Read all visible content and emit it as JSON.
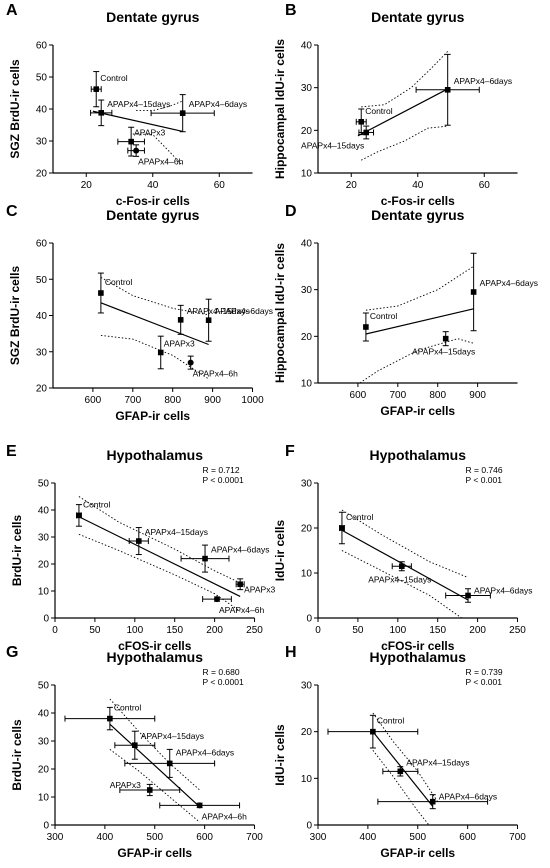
{
  "chart_data": [
    {
      "panel": "A",
      "type": "scatter",
      "title": "Dentate gyrus",
      "xlabel": "c-Fos-ir cells",
      "ylabel": "SGZ BrdU-ir cells",
      "xlim": [
        10,
        70
      ],
      "ylim": [
        20,
        60
      ],
      "xticks": [
        "20",
        "40",
        "60"
      ],
      "yticks": [
        "20",
        "30",
        "40",
        "50",
        "60"
      ],
      "points": [
        {
          "label": "Control",
          "x": 23,
          "y": 46.2,
          "xerr": 1.5,
          "yerr": 5.5
        },
        {
          "label": "APAPx4–15days",
          "x": 24.5,
          "y": 38.8,
          "xerr": 3.2,
          "yerr": 4
        },
        {
          "label": "APAPx4–6days",
          "x": 49,
          "y": 38.7,
          "xerr": 9.5,
          "yerr": 5.8
        },
        {
          "label": "APAPx3",
          "x": 33.5,
          "y": 29.8,
          "xerr": 4,
          "yerr": 4.5
        },
        {
          "label": "APAPx4–6h",
          "x": 35,
          "y": 27,
          "xerr": 2.5,
          "yerr": 1.8
        }
      ],
      "fit": [
        [
          22,
          39.3
        ],
        [
          49,
          33
        ]
      ],
      "band_upper": [
        [
          35,
          39.5
        ],
        [
          40,
          39.5
        ],
        [
          45,
          40.8
        ],
        [
          49,
          42.5
        ]
      ],
      "band_lower": [
        [
          34,
          32.2
        ],
        [
          40,
          32
        ],
        [
          45,
          26.7
        ],
        [
          49,
          22.3
        ]
      ]
    },
    {
      "panel": "B",
      "type": "scatter",
      "title": "Dentate gyrus",
      "xlabel": "c-Fos-ir cells",
      "ylabel": "Hippocampal IdU-ir cells",
      "xlim": [
        10,
        70
      ],
      "ylim": [
        10,
        40
      ],
      "xticks": [
        "20",
        "40",
        "60"
      ],
      "yticks": [
        "10",
        "20",
        "30",
        "40"
      ],
      "points": [
        {
          "label": "Control",
          "x": 23,
          "y": 22,
          "xerr": 1.5,
          "yerr": 3
        },
        {
          "label": "APAPx4–15days",
          "x": 24.5,
          "y": 19.5,
          "xerr": 2.2,
          "yerr": 1.5
        },
        {
          "label": "APAPx4–6days",
          "x": 49,
          "y": 29.5,
          "xerr": 9.5,
          "yerr": 8.3
        }
      ],
      "fit": [
        [
          22,
          18.7
        ],
        [
          49,
          29.7
        ]
      ],
      "band_upper": [
        [
          23,
          25.5
        ],
        [
          30,
          26
        ],
        [
          38,
          30
        ],
        [
          44,
          34.5
        ],
        [
          49,
          38.5
        ]
      ],
      "band_lower": [
        [
          23,
          13
        ],
        [
          28,
          15
        ],
        [
          36,
          17.5
        ],
        [
          43,
          20.5
        ],
        [
          49,
          21
        ]
      ]
    },
    {
      "panel": "C",
      "type": "scatter",
      "title": "Dentate gyrus",
      "xlabel": "GFAP-ir cells",
      "ylabel": "SGZ BrdU-ir cells",
      "xlim": [
        500,
        1000
      ],
      "ylim": [
        20,
        60
      ],
      "xticks": [
        "600",
        "700",
        "800",
        "900",
        "1000"
      ],
      "yticks": [
        "20",
        "30",
        "40",
        "50",
        "60"
      ],
      "points": [
        {
          "label": "Control",
          "x": 620,
          "y": 46.2,
          "xerr": 0,
          "yerr": 5.5
        },
        {
          "label": "APAPx4–15days",
          "x": 820,
          "y": 38.8,
          "xerr": 0,
          "yerr": 4
        },
        {
          "label": "APAPx4–6days",
          "x": 890,
          "y": 38.7,
          "xerr": 0,
          "yerr": 5.8
        },
        {
          "label": "APAPx3",
          "x": 770,
          "y": 29.8,
          "xerr": 0,
          "yerr": 4.5
        },
        {
          "label": "APAPx4–6h",
          "x": 845,
          "y": 27,
          "xerr": 0,
          "yerr": 1.8
        }
      ],
      "fit": [
        [
          620,
          43.5
        ],
        [
          890,
          32
        ]
      ],
      "band_upper": [
        [
          620,
          50.5
        ],
        [
          700,
          45.5
        ],
        [
          800,
          42
        ],
        [
          890,
          40.2
        ]
      ],
      "band_lower": [
        [
          620,
          34.5
        ],
        [
          700,
          33.5
        ],
        [
          800,
          29
        ],
        [
          890,
          22.5
        ]
      ]
    },
    {
      "panel": "D",
      "type": "scatter",
      "title": "Dentate gyrus",
      "xlabel": "GFAP-ir cells",
      "ylabel": "Hippocampal IdU-ir cells",
      "xlim": [
        500,
        1000
      ],
      "ylim": [
        10,
        40
      ],
      "xticks": [
        "600",
        "700",
        "800",
        "900"
      ],
      "yticks": [
        "10",
        "20",
        "30",
        "40"
      ],
      "points": [
        {
          "label": "Control",
          "x": 620,
          "y": 22,
          "xerr": 0,
          "yerr": 3
        },
        {
          "label": "APAPx4–15days",
          "x": 820,
          "y": 19.5,
          "xerr": 0,
          "yerr": 1.5
        },
        {
          "label": "APAPx4–6days",
          "x": 890,
          "y": 29.5,
          "xerr": 0,
          "yerr": 8.3
        }
      ],
      "fit": [
        [
          620,
          20.5
        ],
        [
          890,
          25.9
        ]
      ],
      "band_upper": [
        [
          620,
          25.6
        ],
        [
          700,
          26.5
        ],
        [
          800,
          30
        ],
        [
          890,
          35
        ]
      ],
      "band_lower": [
        [
          605,
          10
        ],
        [
          650,
          12.6
        ],
        [
          750,
          17
        ],
        [
          850,
          19.5
        ],
        [
          890,
          18.5
        ]
      ]
    },
    {
      "panel": "E",
      "type": "scatter",
      "title": "Hypothalamus",
      "xlabel": "cFOS-ir cells",
      "ylabel": "BrdU-ir cells",
      "stats": [
        "R = 0.712",
        "P < 0.0001"
      ],
      "xlim": [
        0,
        250
      ],
      "ylim": [
        0,
        50
      ],
      "xticks": [
        "0",
        "50",
        "100",
        "150",
        "200",
        "250"
      ],
      "yticks": [
        "0",
        "10",
        "20",
        "30",
        "40",
        "50"
      ],
      "points": [
        {
          "label": "Control",
          "x": 30,
          "y": 38,
          "xerr": 3,
          "yerr": 4
        },
        {
          "label": "APAPx4–15days",
          "x": 105,
          "y": 28.5,
          "xerr": 12,
          "yerr": 5
        },
        {
          "label": "APAPx4–6days",
          "x": 188,
          "y": 22,
          "xerr": 30,
          "yerr": 5
        },
        {
          "label": "APAPx3",
          "x": 232,
          "y": 12.5,
          "xerr": 5,
          "yerr": 2
        },
        {
          "label": "APAPx4–6h",
          "x": 203,
          "y": 7,
          "xerr": 18,
          "yerr": 0.8
        }
      ],
      "fit": [
        [
          30,
          37.5
        ],
        [
          232,
          8
        ]
      ],
      "band_upper": [
        [
          30,
          45
        ],
        [
          80,
          35.5
        ],
        [
          150,
          25.5
        ],
        [
          200,
          17.5
        ],
        [
          232,
          13
        ]
      ],
      "band_lower": [
        [
          30,
          31
        ],
        [
          80,
          25
        ],
        [
          150,
          16
        ],
        [
          200,
          9
        ],
        [
          232,
          2.5
        ]
      ]
    },
    {
      "panel": "F",
      "type": "scatter",
      "title": "Hypothalamus",
      "xlabel": "cFOS-ir cells",
      "ylabel": "IdU-ir cells",
      "stats": [
        "R = 0.746",
        "P < 0.001"
      ],
      "xlim": [
        0,
        250
      ],
      "ylim": [
        0,
        30
      ],
      "xticks": [
        "0",
        "50",
        "100",
        "150",
        "200",
        "250"
      ],
      "yticks": [
        "0",
        "10",
        "20",
        "30"
      ],
      "points": [
        {
          "label": "Control",
          "x": 30,
          "y": 20,
          "xerr": 3,
          "yerr": 3.5
        },
        {
          "label": "APAPx4–15days",
          "x": 105,
          "y": 11.5,
          "xerr": 12,
          "yerr": 1
        },
        {
          "label": "APAPx4–6days",
          "x": 188,
          "y": 5,
          "xerr": 28,
          "yerr": 1.5
        }
      ],
      "fit": [
        [
          30,
          19.5
        ],
        [
          188,
          4
        ]
      ],
      "band_upper": [
        [
          30,
          24
        ],
        [
          80,
          18.5
        ],
        [
          140,
          12.5
        ],
        [
          188,
          9
        ]
      ],
      "band_lower": [
        [
          30,
          15
        ],
        [
          80,
          10.5
        ],
        [
          140,
          5
        ],
        [
          188,
          -1
        ]
      ],
      "zero_line": true
    },
    {
      "panel": "G",
      "type": "scatter",
      "title": "Hypothalamus",
      "xlabel": "GFAP-ir cells",
      "ylabel": "BrdU-ir cells",
      "stats": [
        "R = 0.680",
        "P < 0.0001"
      ],
      "xlim": [
        300,
        700
      ],
      "ylim": [
        0,
        50
      ],
      "xticks": [
        "300",
        "400",
        "500",
        "600",
        "700"
      ],
      "yticks": [
        "0",
        "10",
        "20",
        "30",
        "40",
        "50"
      ],
      "points": [
        {
          "label": "Control",
          "x": 410,
          "y": 38,
          "xerr": 90,
          "yerr": 4
        },
        {
          "label": "APAPx4–15days",
          "x": 460,
          "y": 28.5,
          "xerr": 40,
          "yerr": 5
        },
        {
          "label": "APAPx4–6days",
          "x": 530,
          "y": 22,
          "xerr": 90,
          "yerr": 5
        },
        {
          "label": "APAPx3",
          "x": 490,
          "y": 12.5,
          "xerr": 60,
          "yerr": 2
        },
        {
          "label": "APAPx4–6h",
          "x": 590,
          "y": 7,
          "xerr": 80,
          "yerr": 0.8
        }
      ],
      "fit": [
        [
          410,
          36
        ],
        [
          590,
          6.5
        ]
      ],
      "band_upper": [
        [
          410,
          45
        ],
        [
          470,
          33
        ],
        [
          530,
          22
        ],
        [
          590,
          12.5
        ]
      ],
      "band_lower": [
        [
          410,
          27
        ],
        [
          470,
          19
        ],
        [
          530,
          10
        ],
        [
          590,
          1
        ]
      ]
    },
    {
      "panel": "H",
      "type": "scatter",
      "title": "Hypothalamus",
      "xlabel": "GFAP-ir cells",
      "ylabel": "IdU-ir cells",
      "stats": [
        "R = 0.739",
        "P < 0.001"
      ],
      "xlim": [
        300,
        700
      ],
      "ylim": [
        0,
        30
      ],
      "xticks": [
        "300",
        "400",
        "500",
        "600",
        "700"
      ],
      "yticks": [
        "0",
        "10",
        "20",
        "30"
      ],
      "points": [
        {
          "label": "Control",
          "x": 410,
          "y": 20,
          "xerr": 90,
          "yerr": 3.5
        },
        {
          "label": "APAPx4–15days",
          "x": 465,
          "y": 11.5,
          "xerr": 35,
          "yerr": 1
        },
        {
          "label": "APAPx4–6days",
          "x": 530,
          "y": 5,
          "xerr": 110,
          "yerr": 1.5
        }
      ],
      "fit": [
        [
          410,
          20
        ],
        [
          530,
          4
        ]
      ],
      "band_upper": [
        [
          410,
          24
        ],
        [
          450,
          18
        ],
        [
          500,
          11.5
        ],
        [
          540,
          5
        ]
      ],
      "band_lower": [
        [
          410,
          16
        ],
        [
          450,
          10.5
        ],
        [
          500,
          3
        ],
        [
          530,
          -1
        ]
      ]
    }
  ]
}
